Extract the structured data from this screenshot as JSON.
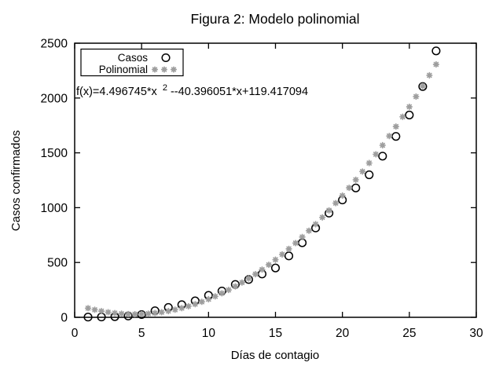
{
  "page": {
    "background": "#ffffff"
  },
  "chart_data": {
    "type": "scatter",
    "title": "Figura 2: Modelo polinomial",
    "xlabel": "Días de contagio",
    "ylabel": "Casos confirmados",
    "xlim": [
      0,
      30
    ],
    "ylim": [
      0,
      2500
    ],
    "x_ticks": [
      0,
      5,
      10,
      15,
      20,
      25,
      30
    ],
    "y_ticks": [
      0,
      500,
      1000,
      1500,
      2000,
      2500
    ],
    "grid": false,
    "legend": {
      "position": "top-left",
      "border": true
    },
    "annotation": {
      "prefix": "f(x)=4.496745*x",
      "superscript": "2",
      "suffix": " --40.396051*x+119.417094"
    },
    "series": [
      {
        "name": "Casos",
        "marker": "open-circle",
        "color": "#000000",
        "x": [
          1,
          2,
          3,
          4,
          5,
          6,
          7,
          8,
          9,
          10,
          11,
          12,
          13,
          14,
          15,
          16,
          17,
          18,
          19,
          20,
          21,
          22,
          23,
          24,
          25,
          26,
          27
        ],
        "y": [
          2,
          3,
          6,
          12,
          25,
          60,
          90,
          115,
          150,
          200,
          240,
          300,
          345,
          395,
          450,
          560,
          680,
          815,
          950,
          1070,
          1180,
          1300,
          1470,
          1650,
          1845,
          2105,
          2430
        ]
      },
      {
        "name": "Polinomial",
        "marker": "asterisk",
        "color": "#9e9e9e",
        "fit": {
          "a": 4.496745,
          "b": -40.396051,
          "c": 119.417094,
          "x_start": 1,
          "x_end": 27,
          "x_step": 0.5
        }
      }
    ]
  }
}
